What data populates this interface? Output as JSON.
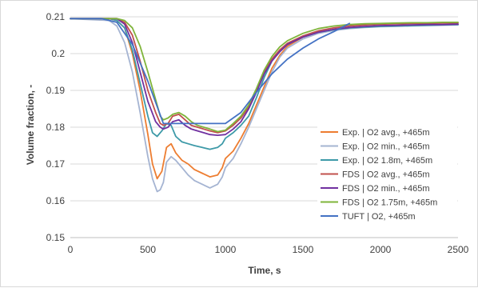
{
  "chart_data": {
    "type": "line",
    "xlabel": "Time, s",
    "ylabel": "Volume fraction, -",
    "xlim": [
      0,
      2500
    ],
    "ylim": [
      0.15,
      0.21
    ],
    "x_ticks": [
      0,
      500,
      1000,
      1500,
      2000,
      2500
    ],
    "y_ticks": [
      0.15,
      0.16,
      0.17,
      0.18,
      0.19,
      0.2,
      0.21
    ],
    "x_tick_labels": [
      "0",
      "500",
      "1000",
      "1500",
      "2000",
      "2500"
    ],
    "y_tick_labels": [
      "0.15",
      "0.16",
      "0.17",
      "0.18",
      "0.19",
      "0.2",
      "0.21"
    ],
    "grid": "horizontal",
    "legend_position": "right",
    "series": [
      {
        "name": "Exp. | O2 avg., +465m",
        "color": "#ED7D31",
        "x": [
          0,
          250,
          300,
          350,
          400,
          450,
          500,
          530,
          560,
          590,
          620,
          650,
          680,
          720,
          760,
          800,
          850,
          900,
          950,
          980,
          1000,
          1050,
          1100,
          1150,
          1200,
          1250,
          1300,
          1350,
          1400,
          1500,
          1600,
          1700,
          1800,
          1900,
          2000,
          2100,
          2200,
          2300,
          2400,
          2500
        ],
        "y": [
          0.2095,
          0.2095,
          0.209,
          0.207,
          0.2,
          0.19,
          0.178,
          0.17,
          0.166,
          0.168,
          0.1745,
          0.1755,
          0.173,
          0.171,
          0.17,
          0.1685,
          0.1675,
          0.1665,
          0.167,
          0.169,
          0.1715,
          0.1735,
          0.177,
          0.181,
          0.186,
          0.191,
          0.196,
          0.1995,
          0.202,
          0.2045,
          0.2058,
          0.2065,
          0.207,
          0.2072,
          0.2074,
          0.2075,
          0.2076,
          0.2077,
          0.2078,
          0.2079
        ]
      },
      {
        "name": "Exp. | O2 min., +465m",
        "color": "#A5B4D2",
        "x": [
          0,
          250,
          300,
          350,
          400,
          450,
          500,
          530,
          560,
          580,
          600,
          620,
          650,
          680,
          720,
          760,
          800,
          850,
          900,
          950,
          980,
          1000,
          1050,
          1100,
          1150,
          1200,
          1250,
          1300,
          1350,
          1400,
          1500,
          1600,
          1700,
          1800,
          1900,
          2000,
          2100,
          2200,
          2300,
          2400,
          2500
        ],
        "y": [
          0.2095,
          0.209,
          0.2075,
          0.203,
          0.195,
          0.184,
          0.172,
          0.166,
          0.1625,
          0.163,
          0.165,
          0.1705,
          0.172,
          0.171,
          0.169,
          0.167,
          0.1655,
          0.1645,
          0.1635,
          0.1645,
          0.1665,
          0.169,
          0.1715,
          0.1755,
          0.18,
          0.185,
          0.19,
          0.195,
          0.199,
          0.2015,
          0.204,
          0.2055,
          0.2063,
          0.2068,
          0.2071,
          0.2073,
          0.2074,
          0.2075,
          0.2076,
          0.2077,
          0.2078
        ]
      },
      {
        "name": "Exp. | O2 1.8m, +465m",
        "color": "#3E9AA8",
        "x": [
          0,
          250,
          300,
          350,
          400,
          450,
          500,
          530,
          560,
          590,
          620,
          650,
          680,
          720,
          760,
          800,
          850,
          900,
          950,
          980,
          1000,
          1050,
          1100,
          1150,
          1200,
          1250,
          1300,
          1350,
          1400,
          1500,
          1600,
          1700,
          1800,
          1900,
          2000,
          2100,
          2200,
          2300,
          2400,
          2500
        ],
        "y": [
          0.2095,
          0.2095,
          0.209,
          0.207,
          0.201,
          0.192,
          0.183,
          0.1785,
          0.1775,
          0.179,
          0.181,
          0.1805,
          0.1775,
          0.176,
          0.1755,
          0.175,
          0.1745,
          0.174,
          0.1745,
          0.1755,
          0.177,
          0.1785,
          0.1805,
          0.183,
          0.188,
          0.1935,
          0.198,
          0.2005,
          0.2025,
          0.2045,
          0.2058,
          0.2065,
          0.207,
          0.2072,
          0.2074,
          0.2075,
          0.2076,
          0.2077,
          0.2078,
          0.2079
        ]
      },
      {
        "name": "FDS | O2 avg., +465m",
        "color": "#C0504D",
        "x": [
          0,
          300,
          350,
          400,
          450,
          500,
          550,
          580,
          600,
          630,
          660,
          700,
          740,
          780,
          820,
          860,
          900,
          950,
          1000,
          1050,
          1100,
          1150,
          1200,
          1250,
          1300,
          1350,
          1400,
          1500,
          1600,
          1700,
          1800,
          1900,
          2000,
          2100,
          2200,
          2300,
          2400,
          2500
        ],
        "y": [
          0.2095,
          0.2095,
          0.2085,
          0.205,
          0.198,
          0.19,
          0.184,
          0.181,
          0.1805,
          0.181,
          0.183,
          0.1835,
          0.182,
          0.1805,
          0.18,
          0.1795,
          0.179,
          0.1785,
          0.179,
          0.1805,
          0.1825,
          0.1855,
          0.19,
          0.195,
          0.1985,
          0.201,
          0.2028,
          0.2048,
          0.2062,
          0.207,
          0.2075,
          0.2078,
          0.208,
          0.2081,
          0.2082,
          0.2082,
          0.2083,
          0.2083
        ]
      },
      {
        "name": "FDS | O2 min., +465m",
        "color": "#7030A0",
        "x": [
          0,
          300,
          350,
          400,
          450,
          500,
          550,
          580,
          600,
          630,
          660,
          700,
          740,
          780,
          820,
          860,
          900,
          950,
          1000,
          1050,
          1100,
          1150,
          1200,
          1250,
          1300,
          1350,
          1400,
          1500,
          1600,
          1700,
          1800,
          1900,
          2000,
          2100,
          2200,
          2300,
          2400,
          2500
        ],
        "y": [
          0.2095,
          0.2095,
          0.208,
          0.203,
          0.195,
          0.187,
          0.1815,
          0.18,
          0.1795,
          0.18,
          0.1815,
          0.182,
          0.1805,
          0.1795,
          0.179,
          0.1785,
          0.178,
          0.1778,
          0.178,
          0.1795,
          0.1815,
          0.185,
          0.1895,
          0.1945,
          0.198,
          0.2005,
          0.2025,
          0.2045,
          0.2058,
          0.2066,
          0.2071,
          0.2074,
          0.2076,
          0.2077,
          0.2078,
          0.2079,
          0.2079,
          0.208
        ]
      },
      {
        "name": "FDS | O2 1.75m, +465m",
        "color": "#7FB43A",
        "x": [
          0,
          300,
          350,
          400,
          450,
          500,
          550,
          580,
          600,
          630,
          660,
          700,
          740,
          780,
          820,
          860,
          900,
          950,
          1000,
          1050,
          1100,
          1150,
          1200,
          1250,
          1300,
          1350,
          1400,
          1500,
          1600,
          1700,
          1800,
          1900,
          2000,
          2100,
          2200,
          2300,
          2400,
          2500
        ],
        "y": [
          0.2095,
          0.2095,
          0.209,
          0.207,
          0.202,
          0.195,
          0.1875,
          0.183,
          0.182,
          0.1825,
          0.1835,
          0.184,
          0.183,
          0.1815,
          0.1805,
          0.18,
          0.1795,
          0.1788,
          0.1792,
          0.181,
          0.183,
          0.186,
          0.1905,
          0.1955,
          0.1992,
          0.2018,
          0.2035,
          0.2055,
          0.2068,
          0.2075,
          0.2079,
          0.2081,
          0.2082,
          0.2083,
          0.2084,
          0.2084,
          0.2085,
          0.2085
        ]
      },
      {
        "name": "TUFT | O2, +465m",
        "color": "#4472C4",
        "x": [
          0,
          200,
          300,
          400,
          500,
          600,
          1000,
          1100,
          1200,
          1300,
          1400,
          1500,
          1600,
          1700,
          1800
        ],
        "y": [
          0.2095,
          0.2095,
          0.2085,
          0.2025,
          0.1925,
          0.181,
          0.181,
          0.184,
          0.1895,
          0.1945,
          0.1985,
          0.2015,
          0.204,
          0.206,
          0.2082
        ]
      }
    ]
  }
}
